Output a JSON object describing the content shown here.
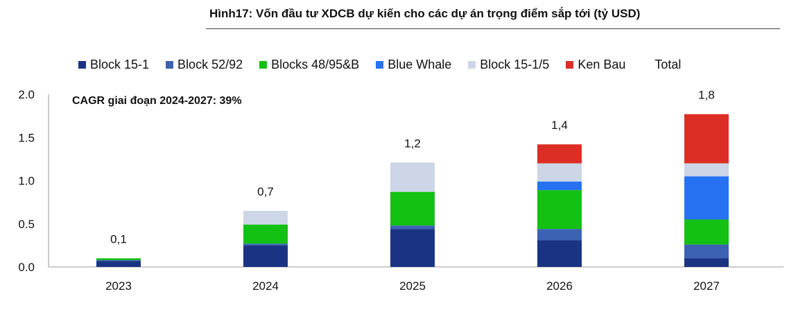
{
  "title": "Hình17: Vốn đầu tư XDCB dự kiến cho các dự án trọng điểm sắp tới (tỷ USD)",
  "annotation": "CAGR giai đoạn 2024-2027: 39%",
  "legend": [
    {
      "name": "Block 15-1",
      "color": "#1a3483"
    },
    {
      "name": "Block 52/92",
      "color": "#3b62b3"
    },
    {
      "name": "Blocks 48/95&B",
      "color": "#12c112"
    },
    {
      "name": "Blue Whale",
      "color": "#2672f2"
    },
    {
      "name": "Block 15-1/5",
      "color": "#cdd6e6"
    },
    {
      "name": "Ken Bau",
      "color": "#dd2e25"
    },
    {
      "name": "Total",
      "color": ""
    }
  ],
  "chart_data": {
    "type": "bar",
    "stacked": true,
    "categories": [
      "2023",
      "2024",
      "2025",
      "2026",
      "2027"
    ],
    "ylim": [
      0,
      2.0
    ],
    "yticks": [
      "0.0",
      "0.5",
      "1.0",
      "1.5",
      "2.0"
    ],
    "series": [
      {
        "name": "Block 15-1",
        "color": "#1a3483",
        "values": [
          0.07,
          0.25,
          0.44,
          0.31,
          0.1
        ]
      },
      {
        "name": "Block 52/92",
        "color": "#3b62b3",
        "values": [
          0.01,
          0.02,
          0.04,
          0.13,
          0.16
        ]
      },
      {
        "name": "Blocks 48/95&B",
        "color": "#12c112",
        "values": [
          0.02,
          0.22,
          0.39,
          0.45,
          0.29
        ]
      },
      {
        "name": "Blue Whale",
        "color": "#2672f2",
        "values": [
          0,
          0,
          0,
          0.1,
          0.5
        ]
      },
      {
        "name": "Block 15-1/5",
        "color": "#cdd6e6",
        "values": [
          0,
          0.16,
          0.34,
          0.21,
          0.15
        ]
      },
      {
        "name": "Ken Bau",
        "color": "#dd2e25",
        "values": [
          0,
          0,
          0,
          0.22,
          0.57
        ]
      }
    ],
    "totals": [
      "0,1",
      "0,7",
      "1,2",
      "1,4",
      "1,8"
    ]
  }
}
